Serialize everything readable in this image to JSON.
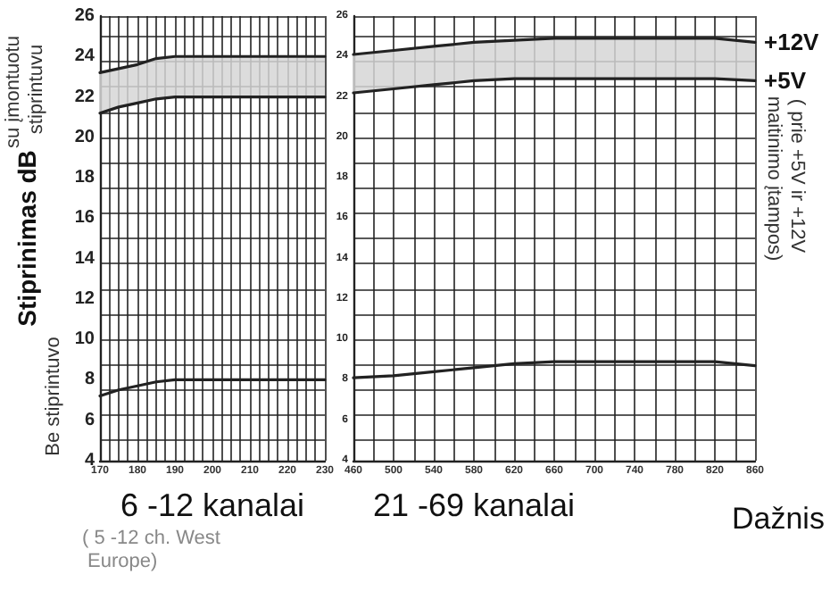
{
  "chart_data": [
    {
      "type": "line",
      "ylabel": "Stiprinimas dB",
      "xlabel": "6 -12 kanalai",
      "annotations": [
        "su įmontuotu stiprintuvu",
        "Be stiprintuvo",
        "( 5 -12 ch. West Europe)"
      ],
      "x": [
        170,
        175,
        180,
        185,
        190,
        200,
        210,
        220,
        230
      ],
      "xlim": [
        170,
        230
      ],
      "xticks": [
        170,
        180,
        190,
        200,
        210,
        220,
        230
      ],
      "ylim": [
        4,
        26
      ],
      "yticks": [
        4,
        6,
        8,
        10,
        12,
        14,
        16,
        18,
        20,
        22,
        24,
        26
      ],
      "grid": true,
      "legend": false,
      "marker": "none",
      "line_style": "solid",
      "series": [
        {
          "color": "#222222",
          "values": [
            23.2,
            23.4,
            23.6,
            23.9,
            24.0,
            24.0,
            24.0,
            24.0,
            24.0
          ],
          "lower": [
            21.2,
            21.5,
            21.7,
            21.9,
            22.0,
            22.0,
            22.0,
            22.0,
            22.0
          ],
          "upper": [
            23.2,
            23.4,
            23.6,
            23.9,
            24.0,
            24.0,
            24.0,
            24.0,
            24.0
          ]
        },
        {
          "color": "#222222",
          "values": [
            21.2,
            21.5,
            21.7,
            21.9,
            22.0,
            22.0,
            22.0,
            22.0,
            22.0
          ]
        },
        {
          "color": "#222222",
          "values": [
            7.2,
            7.5,
            7.7,
            7.9,
            8.0,
            8.0,
            8.0,
            8.0,
            8.0
          ]
        }
      ]
    },
    {
      "type": "line",
      "xlabel": "21 -69 kanalai",
      "annotations": [
        "Dažnis",
        "( prie +5V ir +12V maitinimo įtampos)"
      ],
      "x": [
        460,
        500,
        540,
        580,
        620,
        660,
        700,
        740,
        780,
        820,
        860
      ],
      "xlim": [
        460,
        860
      ],
      "xticks": [
        460,
        500,
        540,
        580,
        620,
        660,
        700,
        740,
        780,
        820,
        860
      ],
      "ylim": [
        4,
        26
      ],
      "yticks": [
        4,
        6,
        8,
        10,
        12,
        14,
        16,
        18,
        20,
        22,
        24,
        26
      ],
      "grid": true,
      "legend": false,
      "marker": "none",
      "line_style": "solid",
      "series": [
        {
          "name": "+12V",
          "color": "#222222",
          "values": [
            24.1,
            24.3,
            24.5,
            24.7,
            24.8,
            24.9,
            24.9,
            24.9,
            24.9,
            24.9,
            24.7
          ],
          "lower": [
            22.2,
            22.4,
            22.6,
            22.8,
            22.9,
            22.9,
            22.9,
            22.9,
            22.9,
            22.9,
            22.8
          ],
          "upper": [
            24.1,
            24.3,
            24.5,
            24.7,
            24.8,
            24.9,
            24.9,
            24.9,
            24.9,
            24.9,
            24.7
          ]
        },
        {
          "name": "+5V",
          "color": "#222222",
          "values": [
            22.2,
            22.4,
            22.6,
            22.8,
            22.9,
            22.9,
            22.9,
            22.9,
            22.9,
            22.9,
            22.8
          ]
        },
        {
          "color": "#222222",
          "values": [
            8.1,
            8.2,
            8.4,
            8.6,
            8.8,
            8.9,
            8.9,
            8.9,
            8.9,
            8.9,
            8.7
          ]
        }
      ]
    }
  ]
}
